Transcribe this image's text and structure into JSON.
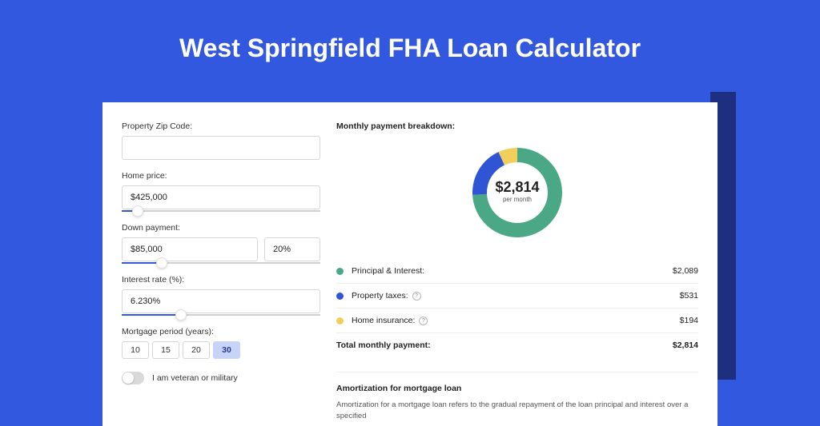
{
  "page": {
    "title": "West Springfield FHA Loan Calculator",
    "background_color": "#3358e0",
    "accent_strip_color": "#1e2f80",
    "card_background": "#ffffff"
  },
  "form": {
    "zip_label": "Property Zip Code:",
    "zip_value": "",
    "home_price_label": "Home price:",
    "home_price_value": "$425,000",
    "home_price_slider_pct": 8,
    "down_payment_label": "Down payment:",
    "down_payment_value": "$85,000",
    "down_payment_pct_value": "20%",
    "down_payment_slider_pct": 20,
    "interest_label": "Interest rate (%):",
    "interest_value": "6.230%",
    "interest_slider_pct": 30,
    "period_label": "Mortgage period (years):",
    "periods": [
      "10",
      "15",
      "20",
      "30"
    ],
    "period_selected": "30",
    "veteran_label": "I am veteran or military",
    "veteran_checked": false
  },
  "breakdown": {
    "section_label": "Monthly payment breakdown:",
    "total_display": "$2,814",
    "total_sub": "per month",
    "donut": {
      "type": "donut",
      "outer_r": 56,
      "inner_r": 38,
      "background_color": "#ffffff",
      "segments": [
        {
          "label": "Principal & Interest",
          "value": 2089,
          "color": "#4ba887",
          "pct": 74.2
        },
        {
          "label": "Property taxes",
          "value": 531,
          "color": "#2f55d4",
          "pct": 18.9
        },
        {
          "label": "Home insurance",
          "value": 194,
          "color": "#f2cf5b",
          "pct": 6.9
        }
      ]
    },
    "rows": [
      {
        "label": "Principal & Interest:",
        "value": "$2,089",
        "dot": "#4ba887",
        "info": false
      },
      {
        "label": "Property taxes:",
        "value": "$531",
        "dot": "#2f55d4",
        "info": true
      },
      {
        "label": "Home insurance:",
        "value": "$194",
        "dot": "#f2cf5b",
        "info": true
      }
    ],
    "total_row": {
      "label": "Total monthly payment:",
      "value": "$2,814"
    }
  },
  "amortization": {
    "title": "Amortization for mortgage loan",
    "body": "Amortization for a mortgage loan refers to the gradual repayment of the loan principal and interest over a specified"
  }
}
